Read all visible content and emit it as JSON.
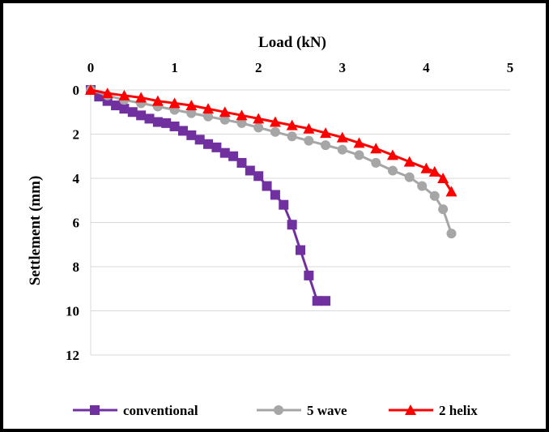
{
  "chart_data": {
    "type": "line",
    "xlabel": "Load (kN)",
    "ylabel": "Settlement (mm)",
    "xlim": [
      0,
      5
    ],
    "ylim": [
      0,
      12
    ],
    "y_inverted": true,
    "x_axis_position": "top",
    "x_ticks": [
      "0",
      "1",
      "2",
      "3",
      "4",
      "5"
    ],
    "y_ticks": [
      "0",
      "2",
      "4",
      "6",
      "8",
      "10",
      "12"
    ],
    "grid": "horizontal",
    "legend_position": "bottom",
    "series": [
      {
        "name": "conventional",
        "color": "#7030A0",
        "marker": "square",
        "x": [
          0,
          0.1,
          0.2,
          0.3,
          0.4,
          0.5,
          0.6,
          0.7,
          0.8,
          0.9,
          1.0,
          1.1,
          1.2,
          1.3,
          1.4,
          1.5,
          1.6,
          1.7,
          1.8,
          1.9,
          2.0,
          2.1,
          2.2,
          2.3,
          2.4,
          2.5,
          2.6,
          2.7,
          2.8
        ],
        "y": [
          0,
          0.3,
          0.5,
          0.7,
          0.85,
          1.0,
          1.15,
          1.3,
          1.45,
          1.5,
          1.65,
          1.85,
          2.05,
          2.25,
          2.45,
          2.6,
          2.85,
          3.0,
          3.3,
          3.65,
          3.9,
          4.35,
          4.75,
          5.2,
          6.1,
          7.25,
          8.4,
          9.55,
          9.55
        ]
      },
      {
        "name": "5 wave",
        "color": "#A6A6A6",
        "marker": "circle",
        "x": [
          0,
          0.2,
          0.4,
          0.6,
          0.8,
          1.0,
          1.2,
          1.4,
          1.6,
          1.8,
          2.0,
          2.2,
          2.4,
          2.6,
          2.8,
          3.0,
          3.2,
          3.4,
          3.6,
          3.8,
          3.95,
          4.1,
          4.2,
          4.3
        ],
        "y": [
          0,
          0.25,
          0.45,
          0.6,
          0.75,
          0.9,
          1.05,
          1.2,
          1.35,
          1.5,
          1.7,
          1.9,
          2.1,
          2.3,
          2.5,
          2.7,
          2.95,
          3.3,
          3.65,
          3.95,
          4.35,
          4.8,
          5.4,
          6.5
        ]
      },
      {
        "name": "2 helix",
        "color": "#FF0000",
        "marker": "triangle",
        "x": [
          0,
          0.2,
          0.4,
          0.6,
          0.8,
          1.0,
          1.2,
          1.4,
          1.6,
          1.8,
          2.0,
          2.2,
          2.4,
          2.6,
          2.8,
          3.0,
          3.2,
          3.4,
          3.6,
          3.8,
          4.0,
          4.1,
          4.2,
          4.3
        ],
        "y": [
          0,
          0.15,
          0.25,
          0.35,
          0.5,
          0.6,
          0.7,
          0.85,
          1.0,
          1.15,
          1.3,
          1.45,
          1.6,
          1.75,
          1.95,
          2.15,
          2.4,
          2.65,
          2.95,
          3.25,
          3.55,
          3.7,
          4.0,
          4.6
        ]
      }
    ]
  }
}
